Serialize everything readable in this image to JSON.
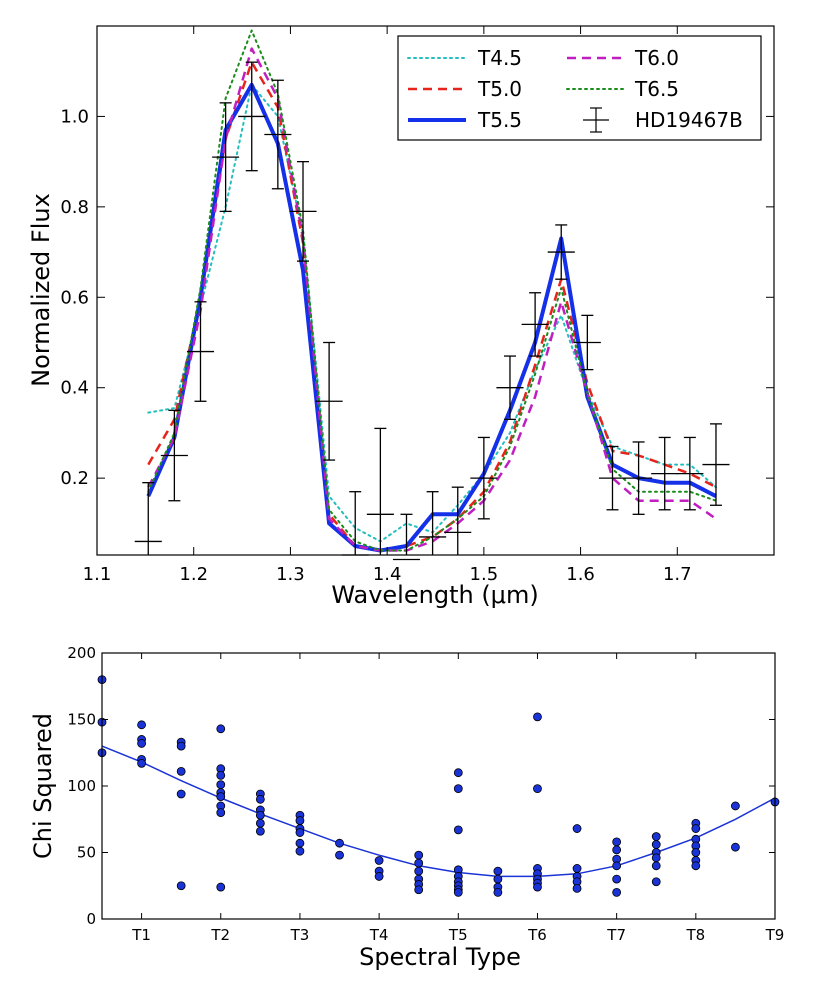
{
  "chart_data": [
    {
      "type": "line",
      "xlabel": "Wavelength (μm)",
      "ylabel": "Normalized Flux",
      "xlim": [
        1.1,
        1.8
      ],
      "ylim": [
        0.03,
        1.2
      ],
      "xticks": [
        1.1,
        1.2,
        1.3,
        1.4,
        1.5,
        1.6,
        1.7
      ],
      "xtick_labels": [
        "1.1",
        "1.2",
        "1.3",
        "1.4",
        "1.5",
        "1.6",
        "1.7"
      ],
      "yticks": [
        0.2,
        0.4,
        0.6,
        0.8,
        1.0
      ],
      "ytick_labels": [
        "0.2",
        "0.4",
        "0.6",
        "0.8",
        "1.0"
      ],
      "legend_position": "top-right",
      "series": [
        {
          "name": "T4.5",
          "color": "#22bfbf",
          "style": "dotted",
          "width": 2,
          "x": [
            1.153,
            1.18,
            1.207,
            1.233,
            1.26,
            1.287,
            1.313,
            1.34,
            1.367,
            1.393,
            1.42,
            1.447,
            1.473,
            1.5,
            1.527,
            1.553,
            1.58,
            1.607,
            1.633,
            1.66,
            1.687,
            1.713,
            1.74
          ],
          "y": [
            0.345,
            0.355,
            0.58,
            0.8,
            1.07,
            1.0,
            0.74,
            0.16,
            0.09,
            0.06,
            0.1,
            0.08,
            0.14,
            0.21,
            0.3,
            0.44,
            0.56,
            0.39,
            0.27,
            0.25,
            0.23,
            0.23,
            0.18
          ]
        },
        {
          "name": "T5.0",
          "color": "#e8231c",
          "style": "dashed",
          "width": 2.5,
          "x": [
            1.153,
            1.18,
            1.207,
            1.233,
            1.26,
            1.287,
            1.313,
            1.34,
            1.367,
            1.393,
            1.42,
            1.447,
            1.473,
            1.5,
            1.527,
            1.553,
            1.58,
            1.607,
            1.633,
            1.66,
            1.687,
            1.713,
            1.74
          ],
          "y": [
            0.23,
            0.33,
            0.6,
            0.95,
            1.12,
            1.02,
            0.72,
            0.12,
            0.05,
            0.04,
            0.05,
            0.07,
            0.11,
            0.17,
            0.28,
            0.45,
            0.64,
            0.41,
            0.26,
            0.25,
            0.23,
            0.21,
            0.18
          ]
        },
        {
          "name": "T5.5",
          "color": "#1430e8",
          "style": "solid",
          "width": 4,
          "x": [
            1.153,
            1.18,
            1.207,
            1.233,
            1.26,
            1.287,
            1.313,
            1.34,
            1.367,
            1.393,
            1.42,
            1.447,
            1.473,
            1.5,
            1.527,
            1.553,
            1.58,
            1.607,
            1.633,
            1.66,
            1.687,
            1.713,
            1.74
          ],
          "y": [
            0.16,
            0.29,
            0.6,
            0.97,
            1.07,
            0.94,
            0.66,
            0.1,
            0.05,
            0.04,
            0.05,
            0.12,
            0.12,
            0.21,
            0.35,
            0.5,
            0.73,
            0.38,
            0.23,
            0.2,
            0.19,
            0.19,
            0.16
          ]
        },
        {
          "name": "T6.0",
          "color": "#c11ec1",
          "style": "dashed",
          "width": 2.5,
          "x": [
            1.153,
            1.18,
            1.207,
            1.233,
            1.26,
            1.287,
            1.313,
            1.34,
            1.367,
            1.393,
            1.42,
            1.447,
            1.473,
            1.5,
            1.527,
            1.553,
            1.58,
            1.607,
            1.633,
            1.66,
            1.687,
            1.713,
            1.74
          ],
          "y": [
            0.18,
            0.29,
            0.57,
            0.95,
            1.15,
            1.04,
            0.73,
            0.11,
            0.05,
            0.04,
            0.04,
            0.06,
            0.1,
            0.15,
            0.24,
            0.38,
            0.59,
            0.39,
            0.2,
            0.15,
            0.15,
            0.15,
            0.11
          ]
        },
        {
          "name": "T6.5",
          "color": "#1b8c1b",
          "style": "dotted",
          "width": 2,
          "x": [
            1.153,
            1.18,
            1.207,
            1.233,
            1.26,
            1.287,
            1.313,
            1.34,
            1.367,
            1.393,
            1.42,
            1.447,
            1.473,
            1.5,
            1.527,
            1.553,
            1.58,
            1.607,
            1.633,
            1.66,
            1.687,
            1.713,
            1.74
          ],
          "y": [
            0.17,
            0.3,
            0.62,
            1.04,
            1.19,
            1.05,
            0.75,
            0.13,
            0.06,
            0.04,
            0.04,
            0.07,
            0.11,
            0.16,
            0.27,
            0.43,
            0.62,
            0.39,
            0.22,
            0.17,
            0.17,
            0.17,
            0.15
          ]
        }
      ],
      "errorbars": {
        "name": "HD19467B",
        "color": "#000000",
        "x": [
          1.153,
          1.18,
          1.207,
          1.233,
          1.26,
          1.287,
          1.313,
          1.34,
          1.367,
          1.393,
          1.42,
          1.447,
          1.473,
          1.5,
          1.527,
          1.553,
          1.58,
          1.607,
          1.633,
          1.66,
          1.687,
          1.713,
          1.74
        ],
        "y": [
          0.06,
          0.25,
          0.48,
          0.91,
          1.0,
          0.96,
          0.79,
          0.37,
          0.03,
          0.12,
          0.02,
          0.07,
          0.08,
          0.2,
          0.4,
          0.54,
          0.7,
          0.5,
          0.2,
          0.2,
          0.21,
          0.21,
          0.23
        ],
        "yerr": [
          0.13,
          0.1,
          0.11,
          0.12,
          0.12,
          0.12,
          0.11,
          0.13,
          0.14,
          0.19,
          0.1,
          0.1,
          0.1,
          0.09,
          0.07,
          0.07,
          0.06,
          0.06,
          0.07,
          0.08,
          0.08,
          0.08,
          0.09
        ],
        "xerr": [
          0.014,
          0.014,
          0.014,
          0.014,
          0.014,
          0.014,
          0.014,
          0.014,
          0.014,
          0.014,
          0.014,
          0.014,
          0.014,
          0.014,
          0.014,
          0.014,
          0.014,
          0.014,
          0.014,
          0.014,
          0.014,
          0.014,
          0.014
        ]
      },
      "legend_order": [
        "T4.5",
        "T5.0",
        "T5.5",
        "T6.0",
        "T6.5",
        "HD19467B"
      ]
    },
    {
      "type": "scatter",
      "xlabel": "Spectral Type",
      "ylabel": "Chi Squared",
      "xlim": [
        0.5,
        9.0
      ],
      "ylim": [
        0,
        200
      ],
      "xticks": [
        1,
        2,
        3,
        4,
        5,
        6,
        7,
        8,
        9
      ],
      "xtick_labels": [
        "T1",
        "T2",
        "T3",
        "T4",
        "T5",
        "T6",
        "T7",
        "T8",
        "T9"
      ],
      "yticks": [
        0,
        50,
        100,
        150,
        200
      ],
      "ytick_labels": [
        "0",
        "50",
        "100",
        "150",
        "200"
      ],
      "point_color": "#1a33d6",
      "points": [
        [
          0.5,
          180
        ],
        [
          0.5,
          148
        ],
        [
          0.5,
          125
        ],
        [
          1.0,
          146
        ],
        [
          1.0,
          135
        ],
        [
          1.0,
          132
        ],
        [
          1.0,
          120
        ],
        [
          1.0,
          117
        ],
        [
          1.5,
          133
        ],
        [
          1.5,
          130
        ],
        [
          1.5,
          111
        ],
        [
          1.5,
          94
        ],
        [
          1.5,
          25
        ],
        [
          2.0,
          143
        ],
        [
          2.0,
          113
        ],
        [
          2.0,
          108
        ],
        [
          2.0,
          101
        ],
        [
          2.0,
          95
        ],
        [
          2.0,
          92
        ],
        [
          2.0,
          85
        ],
        [
          2.0,
          80
        ],
        [
          2.0,
          24
        ],
        [
          2.5,
          94
        ],
        [
          2.5,
          90
        ],
        [
          2.5,
          82
        ],
        [
          2.5,
          78
        ],
        [
          2.5,
          72
        ],
        [
          2.5,
          66
        ],
        [
          3.0,
          78
        ],
        [
          3.0,
          74
        ],
        [
          3.0,
          68
        ],
        [
          3.0,
          65
        ],
        [
          3.0,
          57
        ],
        [
          3.0,
          51
        ],
        [
          3.5,
          57
        ],
        [
          3.5,
          48
        ],
        [
          4.0,
          44
        ],
        [
          4.0,
          36
        ],
        [
          4.0,
          32
        ],
        [
          4.5,
          48
        ],
        [
          4.5,
          42
        ],
        [
          4.5,
          36
        ],
        [
          4.5,
          30
        ],
        [
          4.5,
          26
        ],
        [
          4.5,
          22
        ],
        [
          5.0,
          110
        ],
        [
          5.0,
          98
        ],
        [
          5.0,
          67
        ],
        [
          5.0,
          37
        ],
        [
          5.0,
          32
        ],
        [
          5.0,
          28
        ],
        [
          5.0,
          25
        ],
        [
          5.0,
          22
        ],
        [
          5.0,
          20
        ],
        [
          5.5,
          36
        ],
        [
          5.5,
          30
        ],
        [
          5.5,
          24
        ],
        [
          5.5,
          20
        ],
        [
          6.0,
          152
        ],
        [
          6.0,
          98
        ],
        [
          6.0,
          38
        ],
        [
          6.0,
          34
        ],
        [
          6.0,
          30
        ],
        [
          6.0,
          27
        ],
        [
          6.0,
          24
        ],
        [
          6.5,
          68
        ],
        [
          6.5,
          38
        ],
        [
          6.5,
          32
        ],
        [
          6.5,
          28
        ],
        [
          6.5,
          23
        ],
        [
          7.0,
          58
        ],
        [
          7.0,
          52
        ],
        [
          7.0,
          45
        ],
        [
          7.0,
          40
        ],
        [
          7.0,
          30
        ],
        [
          7.0,
          20
        ],
        [
          7.5,
          62
        ],
        [
          7.5,
          56
        ],
        [
          7.5,
          50
        ],
        [
          7.5,
          46
        ],
        [
          7.5,
          40
        ],
        [
          7.5,
          28
        ],
        [
          8.0,
          72
        ],
        [
          8.0,
          68
        ],
        [
          8.0,
          60
        ],
        [
          8.0,
          55
        ],
        [
          8.0,
          50
        ],
        [
          8.0,
          44
        ],
        [
          8.0,
          40
        ],
        [
          8.5,
          85
        ],
        [
          8.5,
          54
        ],
        [
          9.0,
          88
        ]
      ],
      "fit_line": {
        "color": "#1a33d6",
        "x": [
          0.5,
          1.0,
          1.5,
          2.0,
          2.5,
          3.0,
          3.5,
          4.0,
          4.5,
          5.0,
          5.5,
          6.0,
          6.5,
          7.0,
          7.5,
          8.0,
          8.5,
          9.0
        ],
        "y": [
          130,
          118,
          104,
          91,
          79,
          68,
          57,
          48,
          40,
          35,
          32,
          32,
          34,
          40,
          50,
          61,
          75,
          91
        ]
      }
    }
  ]
}
